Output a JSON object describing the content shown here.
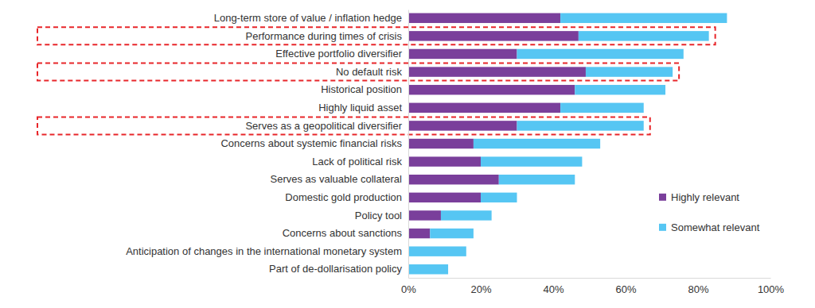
{
  "chart_data": {
    "type": "bar",
    "orientation": "horizontal",
    "stacked": true,
    "categories": [
      "Long-term store of value / inflation hedge",
      "Performance during times of crisis",
      "Effective portfolio diversifier",
      "No default risk",
      "Historical position",
      "Highly liquid asset",
      "Serves as a geopolitical diversifier",
      "Concerns about systemic financial risks",
      "Lack of political risk",
      "Serves as valuable collateral",
      "Domestic gold production",
      "Policy tool",
      "Concerns about sanctions",
      "Anticipation of changes in the international monetary system",
      "Part of de-dollarisation policy"
    ],
    "series": [
      {
        "name": "Highly relevant",
        "color": "#7a3f9b",
        "values": [
          42,
          47,
          30,
          49,
          46,
          42,
          30,
          18,
          20,
          25,
          20,
          9,
          6,
          0,
          0
        ]
      },
      {
        "name": "Somewhat relevant",
        "color": "#56c6f3",
        "values": [
          46,
          36,
          46,
          24,
          25,
          23,
          35,
          35,
          28,
          21,
          10,
          14,
          12,
          16,
          11
        ]
      }
    ],
    "xlim": [
      0,
      100
    ],
    "xticks": [
      {
        "value": 0,
        "label": "0%"
      },
      {
        "value": 20,
        "label": "20%"
      },
      {
        "value": 40,
        "label": "40%"
      },
      {
        "value": 60,
        "label": "60%"
      },
      {
        "value": 80,
        "label": "80%"
      },
      {
        "value": 100,
        "label": "100%"
      }
    ],
    "grid": false,
    "legend": "lower right"
  }
}
